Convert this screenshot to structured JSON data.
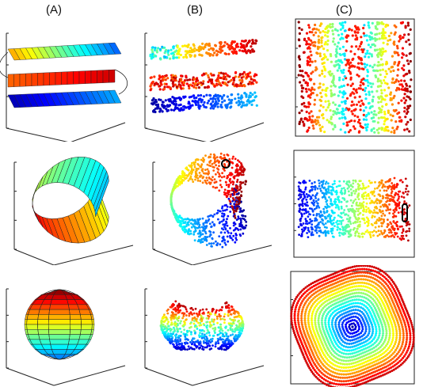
{
  "figure": {
    "column_labels": [
      "(A)",
      "(B)",
      "(C)"
    ],
    "rows": [
      {
        "shape": "s-curve"
      },
      {
        "shape": "mobius-strip"
      },
      {
        "shape": "sphere"
      }
    ],
    "colors": {
      "axis": "#222222",
      "mesh": "#222222",
      "colormap_jet": [
        "#00008f",
        "#0000ff",
        "#0080ff",
        "#00ffff",
        "#80ff80",
        "#ffff00",
        "#ff8000",
        "#ff0000",
        "#800000"
      ],
      "highlight_circle": "#000000"
    }
  }
}
